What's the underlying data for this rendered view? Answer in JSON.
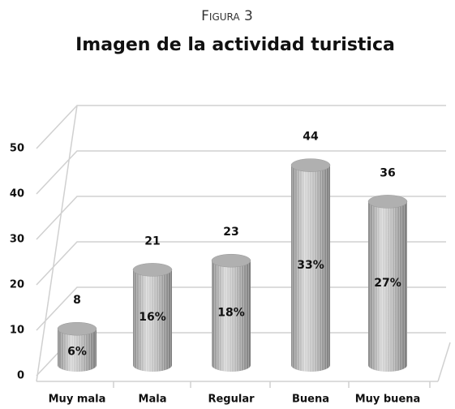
{
  "chart_data": {
    "type": "bar",
    "label": "Figura 3",
    "title": "Imagen de la actividad turistica",
    "categories": [
      "Muy mala",
      "Mala",
      "Regular",
      "Buena",
      "Muy buena"
    ],
    "values": [
      8,
      21,
      23,
      44,
      36
    ],
    "shares": [
      6,
      16,
      18,
      33,
      27
    ],
    "share_labels": [
      "6%",
      "16%",
      "18%",
      "33%",
      "27%"
    ],
    "color": "#b0b0b0",
    "ylim": [
      0,
      50
    ],
    "yticks": [
      0,
      10,
      20,
      30,
      40,
      50
    ],
    "grid": true
  }
}
